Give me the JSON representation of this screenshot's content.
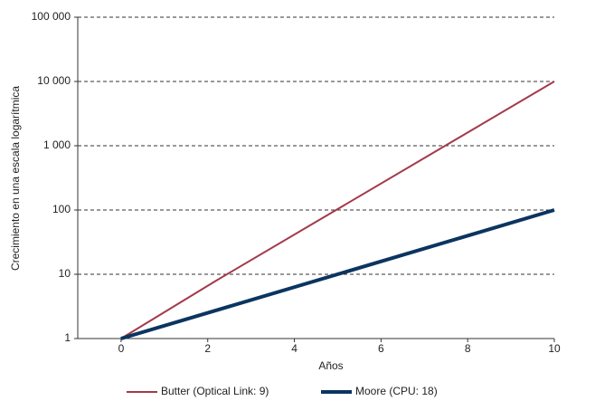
{
  "chart_data": {
    "type": "line",
    "x_label": "Años",
    "y_label": "Crecimiento en una escala logarítmica",
    "log_y": true,
    "grid": true,
    "legend": "bottom",
    "xlim": [
      -1,
      10
    ],
    "xticks": [
      0,
      2,
      4,
      6,
      8,
      10
    ],
    "ylim": [
      1,
      100000
    ],
    "yticks": [
      1,
      10,
      100,
      {
        "value": 1000,
        "label": "1 000"
      },
      {
        "value": 10000,
        "label": "10 000"
      },
      {
        "value": 100000,
        "label": "100 000"
      }
    ],
    "series": [
      {
        "name": "Butter (Optical Link: 9)",
        "color": "#a33a4a",
        "width": 2,
        "x": [
          0,
          2.2,
          10
        ],
        "values": [
          1,
          8,
          10000
        ]
      },
      {
        "name": "Moore (CPU: 18)",
        "color": "#0b3560",
        "width": 4,
        "x": [
          0,
          10
        ],
        "values": [
          1,
          100
        ]
      }
    ]
  }
}
